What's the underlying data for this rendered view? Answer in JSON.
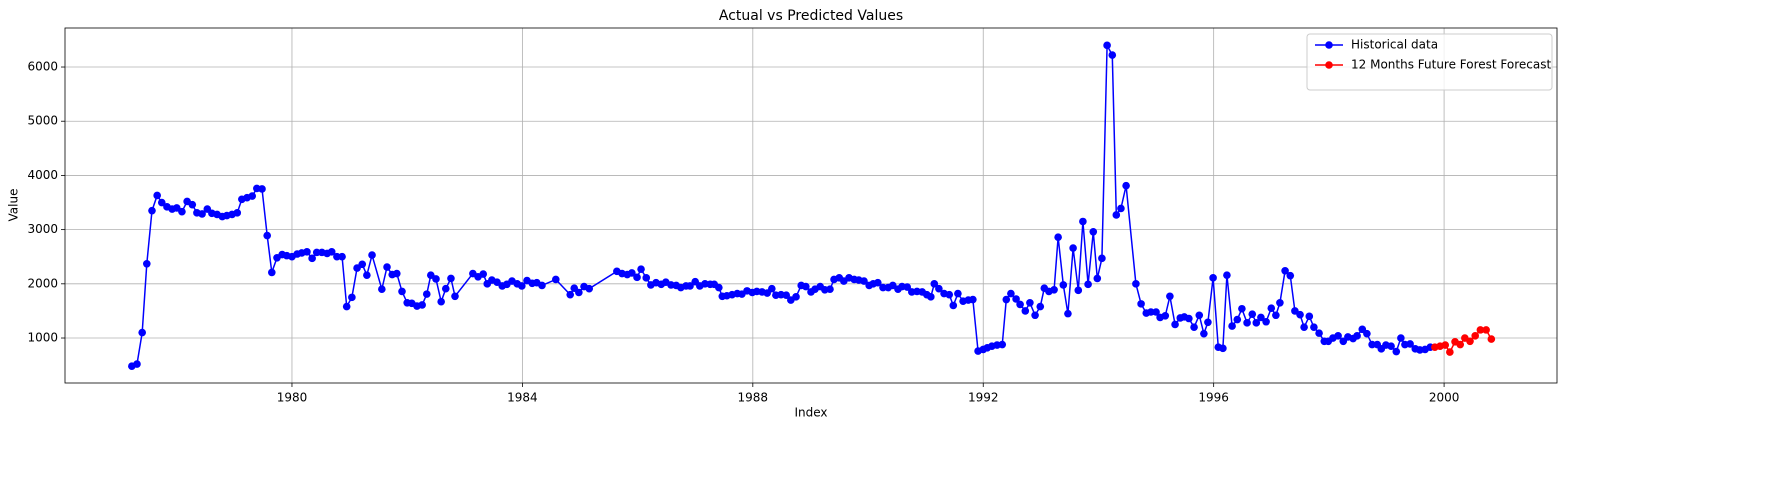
{
  "chart_data": {
    "type": "line",
    "title": "Actual vs Predicted Values",
    "x_label": "Index",
    "y_label": "Value",
    "xlim": [
      1976.06,
      2001.96
    ],
    "xticks": [
      1980,
      1984,
      1988,
      1992,
      1996,
      2000
    ],
    "ylim": [
      170,
      6720
    ],
    "yticks": [
      1000,
      2000,
      3000,
      4000,
      5000,
      6000
    ],
    "grid": true,
    "legend": "upper right",
    "series": [
      {
        "name": "Historical data",
        "color": "#0000ff",
        "x": [
          1977.22,
          1977.31,
          1977.4,
          1977.48,
          1977.57,
          1977.66,
          1977.74,
          1977.83,
          1977.92,
          1978.0,
          1978.09,
          1978.18,
          1978.27,
          1978.35,
          1978.44,
          1978.53,
          1978.61,
          1978.7,
          1978.79,
          1978.87,
          1978.96,
          1979.05,
          1979.13,
          1979.22,
          1979.31,
          1979.39,
          1979.48,
          1979.57,
          1979.65,
          1979.74,
          1979.83,
          1979.91,
          1980.0,
          1980.09,
          1980.17,
          1980.26,
          1980.35,
          1980.43,
          1980.52,
          1980.61,
          1980.69,
          1980.78,
          1980.87,
          1980.95,
          1981.04,
          1981.13,
          1981.22,
          1981.3,
          1981.39,
          1981.56,
          1981.65,
          1981.74,
          1981.82,
          1981.91,
          1982.0,
          1982.08,
          1982.17,
          1982.26,
          1982.34,
          1982.41,
          1982.5,
          1982.59,
          1982.67,
          1982.76,
          1982.83,
          1983.14,
          1983.23,
          1983.32,
          1983.39,
          1983.47,
          1983.56,
          1983.65,
          1983.73,
          1983.82,
          1983.91,
          1983.99,
          1984.08,
          1984.17,
          1984.25,
          1984.34,
          1984.58,
          1984.83,
          1984.9,
          1984.98,
          1985.07,
          1985.16,
          1985.64,
          1985.73,
          1985.82,
          1985.9,
          1985.99,
          1986.06,
          1986.15,
          1986.23,
          1986.32,
          1986.41,
          1986.49,
          1986.58,
          1986.67,
          1986.75,
          1986.84,
          1986.91,
          1987.0,
          1987.08,
          1987.17,
          1987.26,
          1987.33,
          1987.41,
          1987.47,
          1987.55,
          1987.64,
          1987.73,
          1987.81,
          1987.9,
          1987.99,
          1988.07,
          1988.16,
          1988.25,
          1988.33,
          1988.4,
          1988.49,
          1988.58,
          1988.66,
          1988.75,
          1988.84,
          1988.92,
          1989.01,
          1989.08,
          1989.17,
          1989.25,
          1989.34,
          1989.41,
          1989.5,
          1989.58,
          1989.67,
          1989.76,
          1989.84,
          1989.93,
          1990.02,
          1990.09,
          1990.17,
          1990.26,
          1990.35,
          1990.43,
          1990.52,
          1990.59,
          1990.68,
          1990.76,
          1990.85,
          1990.94,
          1991.02,
          1991.09,
          1991.15,
          1991.23,
          1991.32,
          1991.41,
          1991.48,
          1991.56,
          1991.65,
          1991.74,
          1991.82,
          1991.91,
          1992.0,
          1992.07,
          1992.15,
          1992.24,
          1992.33,
          1992.4,
          1992.48,
          1992.57,
          1992.64,
          1992.73,
          1992.81,
          1992.9,
          1992.99,
          1993.06,
          1993.14,
          1993.23,
          1993.3,
          1993.39,
          1993.47,
          1993.56,
          1993.65,
          1993.73,
          1993.82,
          1993.91,
          1993.98,
          1994.06,
          1994.15,
          1994.24,
          1994.31,
          1994.39,
          1994.48,
          1994.65,
          1994.74,
          1994.83,
          1994.91,
          1995.0,
          1995.07,
          1995.16,
          1995.24,
          1995.33,
          1995.42,
          1995.49,
          1995.57,
          1995.66,
          1995.75,
          1995.83,
          1995.9,
          1995.99,
          1996.08,
          1996.16,
          1996.23,
          1996.32,
          1996.41,
          1996.49,
          1996.58,
          1996.67,
          1996.74,
          1996.82,
          1996.91,
          1997.0,
          1997.08,
          1997.15,
          1997.24,
          1997.33,
          1997.41,
          1997.5,
          1997.57,
          1997.66,
          1997.74,
          1997.83,
          1997.92,
          1997.99,
          1998.07,
          1998.16,
          1998.25,
          1998.33,
          1998.42,
          1998.49,
          1998.58,
          1998.66,
          1998.75,
          1998.84,
          1998.91,
          1998.99,
          1999.08,
          1999.17,
          1999.25,
          1999.32,
          1999.41,
          1999.5,
          1999.58,
          1999.67,
          1999.76
        ],
        "values": [
          480,
          520,
          1100,
          2370,
          3350,
          3630,
          3500,
          3420,
          3380,
          3400,
          3330,
          3520,
          3460,
          3310,
          3290,
          3380,
          3300,
          3280,
          3240,
          3260,
          3280,
          3310,
          3560,
          3590,
          3620,
          3760,
          3750,
          2890,
          2210,
          2480,
          2540,
          2520,
          2500,
          2550,
          2570,
          2590,
          2470,
          2580,
          2580,
          2560,
          2590,
          2500,
          2500,
          1580,
          1750,
          2290,
          2360,
          2160,
          2530,
          1900,
          2310,
          2170,
          2190,
          1860,
          1650,
          1640,
          1590,
          1610,
          1810,
          2160,
          2090,
          1670,
          1910,
          2100,
          1770,
          2190,
          2130,
          2180,
          2000,
          2070,
          2030,
          1960,
          1990,
          2050,
          2000,
          1960,
          2060,
          2010,
          2020,
          1970,
          2080,
          1800,
          1920,
          1840,
          1950,
          1910,
          2230,
          2190,
          2170,
          2200,
          2120,
          2270,
          2110,
          1980,
          2020,
          1990,
          2030,
          1980,
          1970,
          1930,
          1960,
          1960,
          2040,
          1960,
          2000,
          1990,
          1990,
          1930,
          1770,
          1780,
          1800,
          1820,
          1810,
          1870,
          1840,
          1860,
          1850,
          1830,
          1910,
          1790,
          1800,
          1790,
          1700,
          1760,
          1970,
          1950,
          1850,
          1900,
          1950,
          1890,
          1900,
          2080,
          2110,
          2050,
          2110,
          2080,
          2070,
          2050,
          1970,
          2000,
          2020,
          1930,
          1930,
          1970,
          1900,
          1950,
          1940,
          1850,
          1860,
          1850,
          1800,
          1760,
          2000,
          1910,
          1820,
          1800,
          1600,
          1820,
          1680,
          1700,
          1710,
          760,
          790,
          820,
          850,
          870,
          880,
          1710,
          1820,
          1720,
          1620,
          1500,
          1650,
          1420,
          1580,
          1920,
          1860,
          1890,
          2860,
          1980,
          1450,
          2660,
          1880,
          3150,
          1990,
          2960,
          2100,
          2470,
          6400,
          6220,
          3270,
          3390,
          3810,
          2000,
          1630,
          1460,
          1480,
          1480,
          1380,
          1410,
          1770,
          1250,
          1370,
          1390,
          1360,
          1200,
          1420,
          1080,
          1290,
          2110,
          830,
          810,
          2160,
          1220,
          1340,
          1540,
          1280,
          1440,
          1280,
          1380,
          1300,
          1550,
          1420,
          1650,
          2240,
          2150,
          1500,
          1430,
          1200,
          1400,
          1200,
          1090,
          940,
          940,
          1000,
          1040,
          940,
          1020,
          990,
          1040,
          1160,
          1080,
          880,
          880,
          800,
          870,
          850,
          750,
          1000,
          880,
          890,
          800,
          780,
          790,
          830
        ]
      },
      {
        "name": "12 Months Future Forest Forecast",
        "color": "#ff0000",
        "x": [
          1999.84,
          1999.93,
          2000.02,
          2000.1,
          2000.19,
          2000.28,
          2000.36,
          2000.45,
          2000.54,
          2000.63,
          2000.73,
          2000.82
        ],
        "values": [
          830,
          850,
          870,
          740,
          930,
          880,
          1000,
          940,
          1040,
          1150,
          1150,
          980
        ]
      }
    ]
  }
}
